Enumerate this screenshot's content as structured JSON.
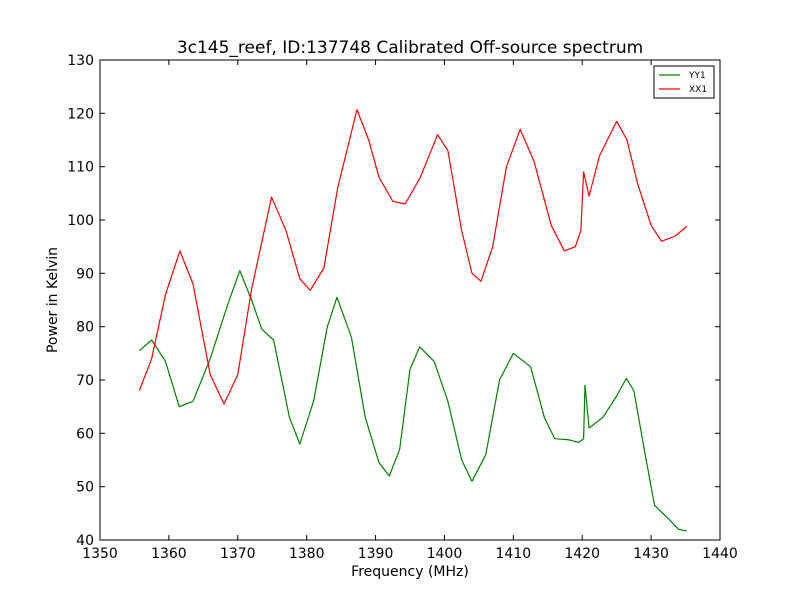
{
  "chart_data": {
    "type": "line",
    "title": "3c145_reef, ID:137748 Calibrated Off-source spectrum",
    "xlabel": "Frequency (MHz)",
    "ylabel": "Power in Kelvin",
    "xlim": [
      1350,
      1440
    ],
    "ylim": [
      40,
      130
    ],
    "xticks": [
      1350,
      1360,
      1370,
      1380,
      1390,
      1400,
      1410,
      1420,
      1430,
      1440
    ],
    "yticks": [
      40,
      50,
      60,
      70,
      80,
      90,
      100,
      110,
      120,
      130
    ],
    "grid": false,
    "legend_position": "top-right",
    "series": [
      {
        "name": "YY1",
        "color": "#008000",
        "x": [
          1355.7,
          1357.5,
          1359.5,
          1361.5,
          1363.5,
          1366.0,
          1368.5,
          1370.3,
          1372.0,
          1373.5,
          1375.2,
          1377.5,
          1379.0,
          1381.0,
          1383.0,
          1384.4,
          1386.5,
          1388.5,
          1390.5,
          1392.0,
          1393.5,
          1395.0,
          1396.4,
          1398.5,
          1400.5,
          1402.5,
          1404.0,
          1406.0,
          1408.0,
          1410.0,
          1412.5,
          1414.5,
          1416.0,
          1418.0,
          1419.5,
          1420.2,
          1420.4,
          1421.0,
          1423.0,
          1425.0,
          1426.4,
          1427.5,
          1429.0,
          1430.5,
          1432.5,
          1434.0,
          1435.2
        ],
        "y": [
          75.5,
          77.5,
          73.5,
          65.0,
          66.0,
          74.0,
          84.0,
          90.5,
          85.0,
          79.5,
          77.5,
          63.0,
          58.0,
          66.0,
          80.0,
          85.5,
          78.0,
          63.0,
          54.5,
          52.0,
          57.0,
          72.0,
          76.2,
          73.5,
          66.0,
          55.0,
          51.0,
          56.0,
          70.0,
          75.0,
          72.5,
          63.0,
          59.0,
          58.8,
          58.3,
          59.0,
          69.0,
          61.0,
          63.0,
          67.0,
          70.3,
          68.0,
          57.0,
          46.5,
          44.0,
          42.0,
          41.7
        ]
      },
      {
        "name": "XX1",
        "color": "#ff0000",
        "x": [
          1355.7,
          1357.5,
          1359.5,
          1361.6,
          1363.5,
          1366.0,
          1368.0,
          1370.0,
          1372.0,
          1374.9,
          1377.0,
          1379.0,
          1380.5,
          1382.5,
          1384.5,
          1387.3,
          1389.0,
          1390.5,
          1392.5,
          1394.3,
          1396.5,
          1399.0,
          1400.5,
          1402.5,
          1404.0,
          1405.3,
          1407.0,
          1409.0,
          1411.0,
          1413.0,
          1415.5,
          1417.4,
          1419.0,
          1419.8,
          1420.2,
          1421.0,
          1422.5,
          1425.0,
          1426.5,
          1428.0,
          1430.0,
          1431.5,
          1433.5,
          1435.2
        ],
        "y": [
          68.0,
          74.0,
          86.0,
          94.2,
          88.0,
          71.0,
          65.5,
          71.0,
          87.0,
          104.3,
          98.0,
          89.0,
          86.8,
          91.0,
          106.0,
          120.7,
          115.0,
          108.0,
          103.5,
          103.0,
          108.0,
          116.0,
          113.0,
          98.0,
          90.0,
          88.5,
          95.0,
          110.0,
          117.0,
          111.0,
          99.0,
          94.2,
          95.0,
          98.0,
          109.0,
          104.5,
          112.0,
          118.5,
          115.0,
          107.0,
          99.0,
          96.0,
          97.0,
          98.8
        ]
      }
    ]
  }
}
